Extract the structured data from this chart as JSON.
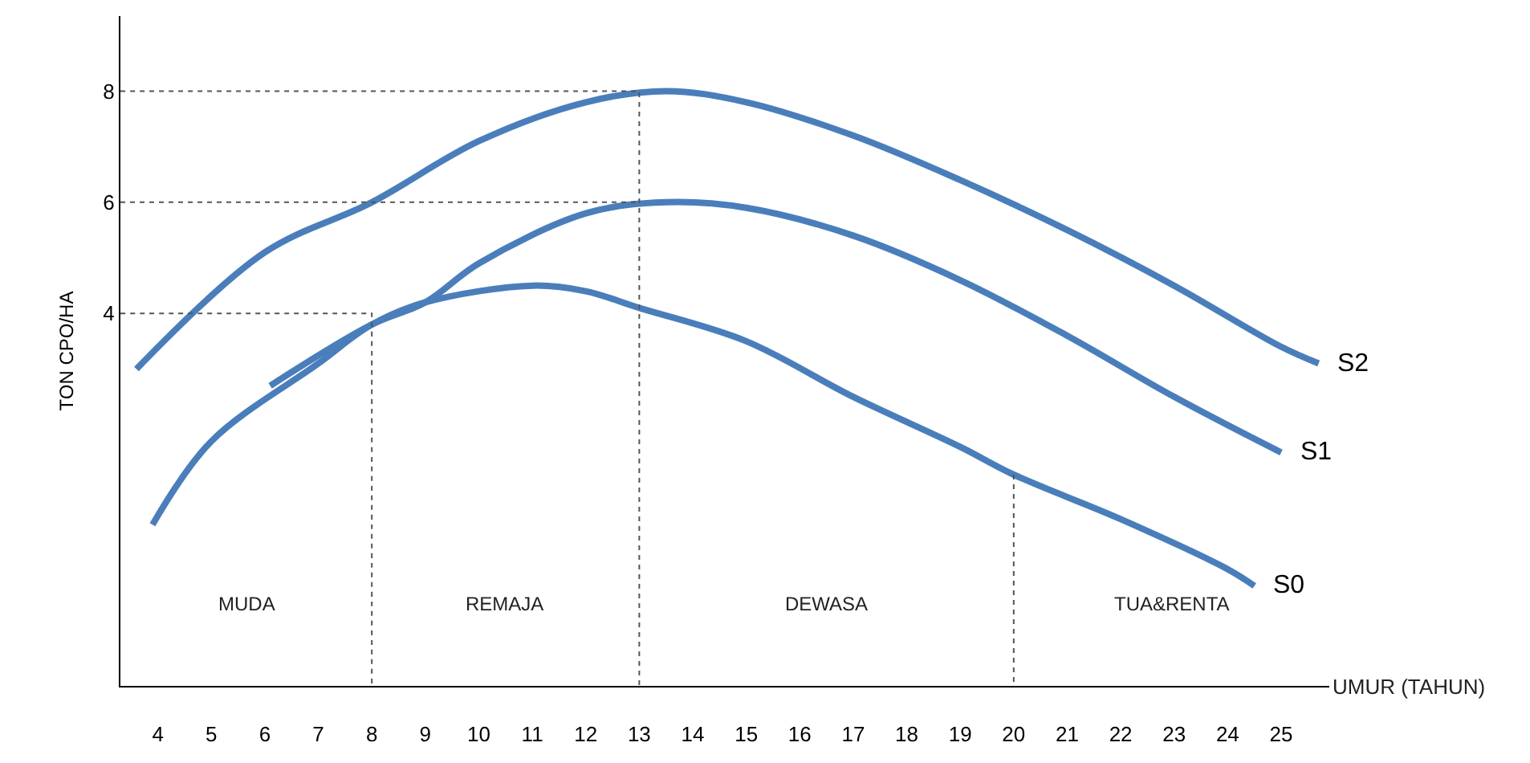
{
  "chart_data": {
    "type": "line",
    "xlabel": "UMUR (TAHUN)",
    "ylabel": "TON CPO/HA",
    "xlim": [
      3.3,
      25.9
    ],
    "xticks": [
      4,
      5,
      6,
      7,
      8,
      9,
      10,
      11,
      12,
      13,
      14,
      15,
      16,
      17,
      18,
      19,
      20,
      21,
      22,
      23,
      24,
      25
    ],
    "ylim": [
      -2.7,
      9.35
    ],
    "yticks": [
      4,
      6,
      8
    ],
    "legend": false,
    "marker": "none",
    "line_style": "solid",
    "series": [
      {
        "name": "S0",
        "color": "#4a7ebb",
        "x": [
          3.9,
          5,
          7,
          8,
          9,
          11,
          12,
          13,
          15,
          17,
          19,
          20,
          22,
          24,
          24.5
        ],
        "values": [
          0.2,
          1.7,
          3.1,
          3.8,
          4.2,
          4.5,
          4.4,
          4.1,
          3.5,
          2.5,
          1.6,
          1.1,
          0.3,
          -0.6,
          -0.9
        ]
      },
      {
        "name": "S1",
        "color": "#4a7ebb",
        "x": [
          6.1,
          8,
          9,
          10,
          12,
          13.5,
          15,
          17,
          19,
          21,
          23,
          25
        ],
        "values": [
          2.7,
          3.8,
          4.2,
          4.9,
          5.8,
          6.0,
          5.9,
          5.4,
          4.6,
          3.6,
          2.5,
          1.5
        ]
      },
      {
        "name": "S2",
        "color": "#4a7ebb",
        "x": [
          3.6,
          6,
          8,
          10,
          12,
          13.5,
          15,
          17,
          19,
          21,
          23,
          25,
          25.7
        ],
        "values": [
          3.0,
          5.1,
          6.0,
          7.1,
          7.8,
          8.0,
          7.8,
          7.2,
          6.4,
          5.5,
          4.5,
          3.4,
          3.1
        ]
      },
      {
        "type": "line",
        "color": "#555555",
        "line_style": "dashed",
        "x": [
          3.3,
          13,
          13
        ],
        "values": [
          8,
          8,
          -2.7
        ]
      },
      {
        "type": "line",
        "color": "#555555",
        "line_style": "dashed",
        "x": [
          3.3,
          13
        ],
        "values": [
          6,
          6
        ]
      },
      {
        "type": "line",
        "color": "#555555",
        "line_style": "dashed",
        "x": [
          3.3,
          8,
          8
        ],
        "values": [
          4,
          4,
          -2.7
        ]
      },
      {
        "type": "line",
        "color": "#555555",
        "line_style": "dashed",
        "x": [
          20,
          20
        ],
        "values": [
          1.1,
          -2.7
        ]
      }
    ],
    "annotations": [
      "MUDA",
      "REMAJA",
      "DEWASA",
      "TUA&RENTA"
    ]
  }
}
